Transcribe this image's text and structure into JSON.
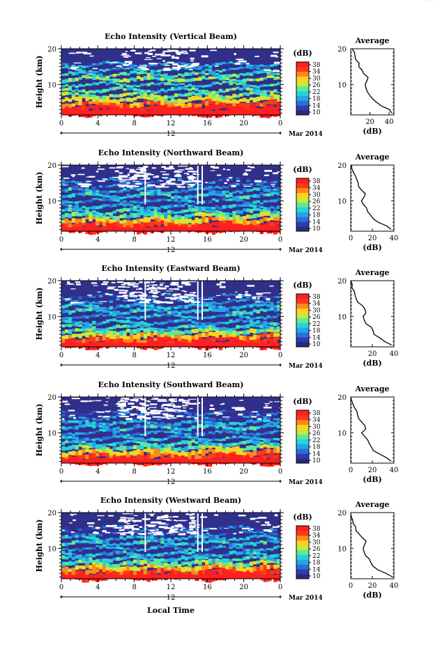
{
  "figure": {
    "xlabel": "Local Time",
    "date_label": "Mar 2014",
    "mid_label": "12",
    "colorbar_unit": "(dB)",
    "colorbar_ticks": [
      "10",
      "14",
      "18",
      "22",
      "26",
      "30",
      "34",
      "38"
    ],
    "colors": {
      "ramp": [
        "#2a2a7e",
        "#2f3bb0",
        "#2c6fd9",
        "#22a6e8",
        "#27d3d8",
        "#5fe89a",
        "#c8ea3a",
        "#ffd21f",
        "#ff8a1a",
        "#ff3a1a",
        "#ff2020"
      ],
      "background_echo": "#30308a",
      "profile_line": "#000000"
    }
  },
  "chart_data": [
    {
      "type": "heatmap",
      "title": "Echo Intensity (Vertical Beam)",
      "ylabel": "Height (km)",
      "xlim": [
        0,
        24
      ],
      "ylim": [
        1.5,
        20
      ],
      "xticks": [
        "0",
        "4",
        "8",
        "12",
        "16",
        "20",
        "0"
      ],
      "yticks": [
        "10",
        "20"
      ],
      "colorbar": {
        "label": "(dB)",
        "range": [
          10,
          38
        ]
      },
      "profile": {
        "title": "Average",
        "xlabel": "(dB)",
        "xticks": [
          "20",
          "40"
        ],
        "xlim": [
          0,
          45
        ],
        "yticks": [
          "10",
          "20"
        ],
        "ylim": [
          1.5,
          20
        ],
        "height_km": [
          2,
          3,
          4,
          5,
          6,
          7,
          8,
          9,
          10,
          11,
          12,
          13,
          14,
          15,
          16,
          17,
          18,
          19,
          20
        ],
        "db": [
          43,
          40,
          33,
          26,
          22,
          20,
          17,
          16,
          15,
          17,
          18,
          14,
          11,
          9,
          8,
          6,
          4,
          3,
          1
        ]
      }
    },
    {
      "type": "heatmap",
      "title": "Echo Intensity (Northward Beam)",
      "ylabel": "Height (km)",
      "xlim": [
        0,
        24
      ],
      "ylim": [
        1.5,
        20
      ],
      "xticks": [
        "0",
        "4",
        "8",
        "12",
        "16",
        "20",
        "0"
      ],
      "yticks": [
        "10",
        "20"
      ],
      "colorbar": {
        "label": "(dB)",
        "range": [
          10,
          38
        ]
      },
      "profile": {
        "title": "Average",
        "xlabel": "(dB)",
        "xticks": [
          "0",
          "20",
          "40"
        ],
        "xlim": [
          0,
          40
        ],
        "yticks": [
          "10",
          "20"
        ],
        "ylim": [
          1.5,
          20
        ],
        "height_km": [
          2,
          3,
          4,
          5,
          6,
          7,
          8,
          9,
          10,
          11,
          12,
          13,
          14,
          15,
          16,
          17,
          18,
          19,
          20
        ],
        "db": [
          38,
          33,
          26,
          20,
          18,
          16,
          14,
          12,
          10,
          12,
          14,
          10,
          8,
          6,
          5,
          4,
          2,
          1,
          0
        ]
      }
    },
    {
      "type": "heatmap",
      "title": "Echo Intensity (Eastward Beam)",
      "ylabel": "Height (km)",
      "xlim": [
        0,
        24
      ],
      "ylim": [
        1.5,
        20
      ],
      "xticks": [
        "0",
        "4",
        "8",
        "12",
        "16",
        "20",
        "0"
      ],
      "yticks": [
        "10",
        "20"
      ],
      "colorbar": {
        "label": "(dB)",
        "range": [
          10,
          38
        ]
      },
      "profile": {
        "title": "Average",
        "xlabel": "(dB)",
        "xticks": [
          "20",
          "40"
        ],
        "xlim": [
          0,
          40
        ],
        "yticks": [
          "10",
          "20"
        ],
        "ylim": [
          1.5,
          20
        ],
        "height_km": [
          2,
          3,
          4,
          5,
          6,
          7,
          8,
          9,
          10,
          11,
          12,
          13,
          14,
          15,
          16,
          17,
          18,
          19,
          20
        ],
        "db": [
          38,
          32,
          26,
          22,
          20,
          18,
          15,
          13,
          11,
          13,
          14,
          10,
          7,
          5,
          4,
          3,
          2,
          1,
          0
        ]
      }
    },
    {
      "type": "heatmap",
      "title": "Echo Intensity (Southward Beam)",
      "ylabel": "Height (km)",
      "xlim": [
        0,
        24
      ],
      "ylim": [
        1.5,
        20
      ],
      "xticks": [
        "0",
        "4",
        "8",
        "12",
        "16",
        "20",
        "0"
      ],
      "yticks": [
        "10",
        "20"
      ],
      "colorbar": {
        "label": "(dB)",
        "range": [
          10,
          38
        ]
      },
      "profile": {
        "title": "Average",
        "xlabel": "(dB)",
        "xticks": [
          "0",
          "20",
          "40"
        ],
        "xlim": [
          0,
          40
        ],
        "yticks": [
          "10",
          "20"
        ],
        "ylim": [
          1.5,
          20
        ],
        "height_km": [
          2,
          3,
          4,
          5,
          6,
          7,
          8,
          9,
          10,
          11,
          12,
          13,
          14,
          15,
          16,
          17,
          18,
          19,
          20
        ],
        "db": [
          38,
          33,
          27,
          21,
          19,
          17,
          15,
          13,
          11,
          13,
          14,
          10,
          8,
          6,
          5,
          4,
          2,
          1,
          0
        ]
      }
    },
    {
      "type": "heatmap",
      "title": "Echo Intensity (Westward Beam)",
      "ylabel": "Height (km)",
      "xlim": [
        0,
        24
      ],
      "ylim": [
        1.5,
        20
      ],
      "xticks": [
        "0",
        "4",
        "8",
        "12",
        "16",
        "20",
        "0"
      ],
      "yticks": [
        "10",
        "20"
      ],
      "colorbar": {
        "label": "(dB)",
        "range": [
          10,
          38
        ]
      },
      "profile": {
        "title": "Average",
        "xlabel": "(dB)",
        "xticks": [
          "0",
          "20",
          "40"
        ],
        "xlim": [
          0,
          40
        ],
        "yticks": [
          "10",
          "20"
        ],
        "ylim": [
          1.5,
          20
        ],
        "height_km": [
          2,
          3,
          4,
          5,
          6,
          7,
          8,
          9,
          10,
          11,
          12,
          13,
          14,
          15,
          16,
          17,
          18,
          19,
          20
        ],
        "db": [
          38,
          32,
          26,
          21,
          19,
          17,
          14,
          12,
          11,
          13,
          14,
          10,
          7,
          5,
          4,
          3,
          2,
          1,
          0
        ]
      }
    }
  ]
}
